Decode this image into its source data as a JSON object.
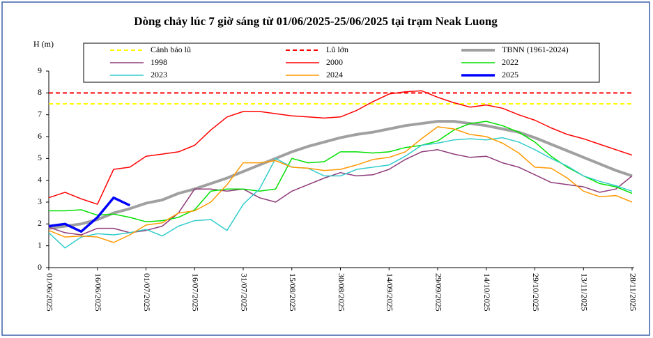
{
  "chart_data": {
    "type": "line",
    "title": "Dòng chảy lúc 7 giờ sáng từ 01/06/2025-25/06/2025 tại trạm Neak Luong",
    "y_label": "H (m)",
    "x": [
      "01/06/2025",
      "06/06/2025",
      "11/06/2025",
      "16/06/2025",
      "21/06/2025",
      "26/06/2025",
      "01/07/2025",
      "06/07/2025",
      "11/07/2025",
      "16/07/2025",
      "21/07/2025",
      "26/07/2025",
      "31/07/2025",
      "05/08/2025",
      "10/08/2025",
      "15/08/2025",
      "20/08/2025",
      "25/08/2025",
      "30/08/2025",
      "04/09/2025",
      "09/09/2025",
      "14/09/2025",
      "19/09/2025",
      "24/09/2025",
      "29/09/2025",
      "04/10/2025",
      "09/10/2025",
      "14/10/2025",
      "19/10/2025",
      "24/10/2025",
      "29/10/2025",
      "03/11/2025",
      "08/11/2025",
      "13/11/2025",
      "18/11/2025",
      "23/11/2025",
      "28/11/2025"
    ],
    "xticks": [
      "01/06/2025",
      "16/06/2025",
      "01/07/2025",
      "16/07/2025",
      "31/07/2025",
      "15/08/2025",
      "30/08/2025",
      "14/09/2025",
      "29/09/2025",
      "14/10/2025",
      "29/10/2025",
      "13/11/2025",
      "28/11/2025"
    ],
    "ylim": [
      0,
      9
    ],
    "yticks": [
      0,
      1,
      2,
      3,
      4,
      5,
      6,
      7,
      8,
      9
    ],
    "hlines": [
      {
        "name": "Cảnh báo lũ",
        "color": "#ffff00",
        "value": 7.5
      },
      {
        "name": "Lũ lớn",
        "color": "#ff0000",
        "value": 8
      }
    ],
    "series": [
      {
        "name": "TBNN (1961-2024)",
        "color": "#a0a0a0",
        "width": 4,
        "values": [
          1.8,
          1.9,
          2.0,
          2.2,
          2.5,
          2.7,
          2.95,
          3.1,
          3.4,
          3.6,
          3.85,
          4.1,
          4.4,
          4.7,
          5.0,
          5.3,
          5.55,
          5.75,
          5.95,
          6.1,
          6.2,
          6.35,
          6.5,
          6.6,
          6.7,
          6.7,
          6.6,
          6.5,
          6.35,
          6.2,
          5.95,
          5.65,
          5.35,
          5.05,
          4.75,
          4.45,
          4.2
        ]
      },
      {
        "name": "1998",
        "color": "#8e3b7a",
        "width": 1.5,
        "values": [
          1.85,
          1.6,
          1.5,
          1.8,
          1.8,
          1.6,
          1.7,
          1.9,
          2.5,
          3.6,
          3.6,
          3.5,
          3.6,
          3.2,
          3.0,
          3.5,
          3.8,
          4.1,
          4.35,
          4.2,
          4.25,
          4.5,
          4.95,
          5.3,
          5.4,
          5.2,
          5.05,
          5.1,
          4.8,
          4.6,
          4.25,
          3.9,
          3.8,
          3.7,
          3.45,
          3.6,
          4.2
        ]
      },
      {
        "name": "2000",
        "color": "#ff0000",
        "width": 1.5,
        "values": [
          3.2,
          3.45,
          3.15,
          2.9,
          4.5,
          4.6,
          5.1,
          5.2,
          5.3,
          5.6,
          6.3,
          6.9,
          7.15,
          7.15,
          7.05,
          6.95,
          6.9,
          6.85,
          6.9,
          7.2,
          7.6,
          7.95,
          8.05,
          8.1,
          7.8,
          7.55,
          7.35,
          7.45,
          7.3,
          7.0,
          6.75,
          6.4,
          6.1,
          5.9,
          5.65,
          5.4,
          5.15
        ]
      },
      {
        "name": "2022",
        "color": "#00e000",
        "width": 1.5,
        "values": [
          2.6,
          2.6,
          2.65,
          2.4,
          2.45,
          2.3,
          2.1,
          2.15,
          2.3,
          2.65,
          3.5,
          3.6,
          3.6,
          3.5,
          3.6,
          5.0,
          4.8,
          4.85,
          5.3,
          5.3,
          5.25,
          5.3,
          5.5,
          5.6,
          5.8,
          6.3,
          6.6,
          6.7,
          6.5,
          6.2,
          5.75,
          5.1,
          4.6,
          4.2,
          3.85,
          3.7,
          3.4
        ]
      },
      {
        "name": "2023",
        "color": "#33cccc",
        "width": 1.5,
        "values": [
          1.6,
          0.9,
          1.4,
          1.55,
          1.5,
          1.6,
          1.75,
          1.45,
          1.9,
          2.15,
          2.2,
          1.7,
          2.9,
          3.6,
          5.0,
          4.6,
          4.55,
          4.2,
          4.2,
          4.5,
          4.6,
          4.7,
          5.1,
          5.6,
          5.7,
          5.85,
          5.9,
          5.85,
          5.95,
          5.75,
          5.4,
          5.0,
          4.65,
          4.2,
          3.95,
          3.75,
          3.5
        ]
      },
      {
        "name": "2024",
        "color": "#ff9900",
        "width": 1.5,
        "values": [
          1.7,
          1.4,
          1.45,
          1.4,
          1.15,
          1.5,
          1.95,
          2.05,
          2.5,
          2.6,
          3.0,
          3.8,
          4.8,
          4.8,
          4.9,
          4.6,
          4.55,
          4.45,
          4.5,
          4.7,
          4.95,
          5.05,
          5.3,
          5.9,
          6.45,
          6.35,
          6.1,
          6.0,
          5.7,
          5.25,
          4.6,
          4.55,
          4.1,
          3.5,
          3.25,
          3.3,
          3.0
        ]
      },
      {
        "name": "2025",
        "color": "#0000ff",
        "width": 3.5,
        "values": [
          1.9,
          2.0,
          1.65,
          2.3,
          3.2,
          2.85,
          null,
          null,
          null,
          null,
          null,
          null,
          null,
          null,
          null,
          null,
          null,
          null,
          null,
          null,
          null,
          null,
          null,
          null,
          null,
          null,
          null,
          null,
          null,
          null,
          null,
          null,
          null,
          null,
          null,
          null,
          null
        ]
      }
    ]
  }
}
